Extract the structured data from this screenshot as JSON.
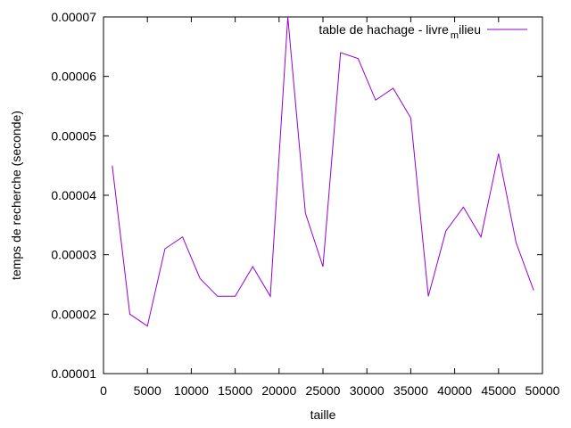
{
  "chart_data": {
    "type": "line",
    "xlabel": "taille",
    "ylabel": "temps de recherche (seconde)",
    "xlim": [
      0,
      50000
    ],
    "ylim": [
      1e-05,
      7e-05
    ],
    "x_ticks": [
      0,
      5000,
      10000,
      15000,
      20000,
      25000,
      30000,
      35000,
      40000,
      45000,
      50000
    ],
    "x_tick_labels": [
      "0",
      "5000",
      "10000",
      "15000",
      "20000",
      "25000",
      "30000",
      "35000",
      "40000",
      "45000",
      "50000"
    ],
    "y_ticks": [
      1e-05,
      2e-05,
      3e-05,
      4e-05,
      5e-05,
      6e-05,
      7e-05
    ],
    "y_tick_labels": [
      "0.00001",
      "0.00002",
      "0.00003",
      "0.00004",
      "0.00005",
      "0.00006",
      "0.00007"
    ],
    "legend_position": "top-right",
    "grid": false,
    "series": [
      {
        "name": "table de hachage - livre",
        "name_subscript": "m",
        "name_suffix": "ilieu",
        "color": "#9400d3",
        "x": [
          1000,
          3000,
          5000,
          7000,
          9000,
          11000,
          13000,
          15000,
          17000,
          19000,
          21000,
          23000,
          25000,
          27000,
          29000,
          31000,
          33000,
          35000,
          37000,
          39000,
          41000,
          43000,
          45000,
          47000,
          49000
        ],
        "y": [
          4.5e-05,
          2e-05,
          1.8e-05,
          3.1e-05,
          3.3e-05,
          2.6e-05,
          2.3e-05,
          2.3e-05,
          2.8e-05,
          2.3e-05,
          7e-05,
          3.7e-05,
          2.8e-05,
          6.4e-05,
          6.3e-05,
          5.6e-05,
          5.8e-05,
          5.3e-05,
          2.3e-05,
          3.4e-05,
          3.8e-05,
          3.3e-05,
          4.7e-05,
          3.2e-05,
          2.4e-05
        ]
      }
    ]
  }
}
